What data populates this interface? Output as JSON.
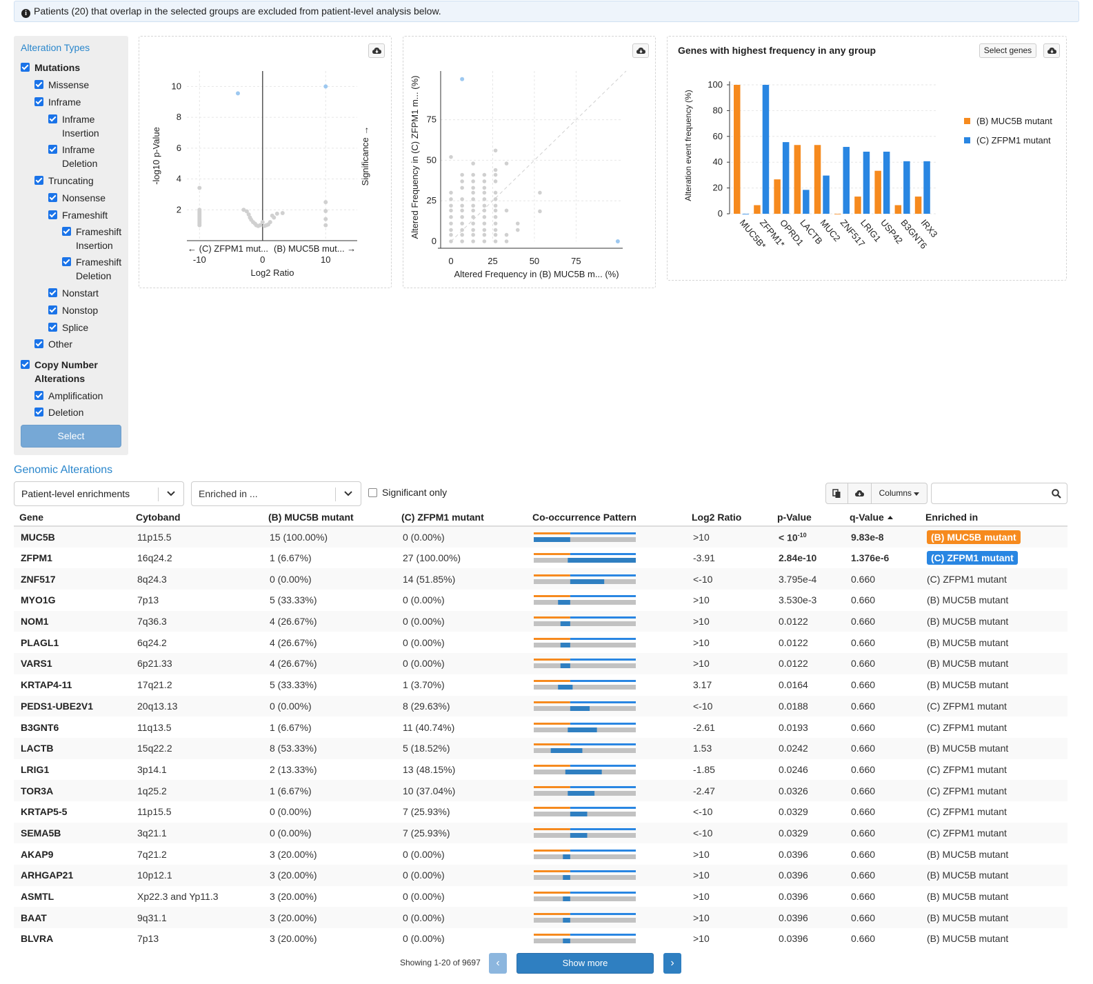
{
  "info_banner": "Patients (20) that overlap in the selected groups are excluded from patient-level analysis below.",
  "colors": {
    "group_b": "#f68a1e",
    "group_c": "#2986e2",
    "link": "#2986cc",
    "check": "#1a73e8",
    "grey": "#c2c2c2"
  },
  "sidebar": {
    "title": "Alteration Types",
    "items": [
      {
        "label": "Mutations",
        "level": 0,
        "bold": true,
        "checked": true
      },
      {
        "label": "Missense",
        "level": 1,
        "checked": true
      },
      {
        "label": "Inframe",
        "level": 1,
        "checked": true
      },
      {
        "label": "Inframe Insertion",
        "level": 2,
        "checked": true
      },
      {
        "label": "Inframe Deletion",
        "level": 2,
        "checked": true
      },
      {
        "label": "Truncating",
        "level": 1,
        "checked": true
      },
      {
        "label": "Nonsense",
        "level": 2,
        "checked": true
      },
      {
        "label": "Frameshift",
        "level": 2,
        "checked": true
      },
      {
        "label": "Frameshift Insertion",
        "level": 3,
        "checked": true
      },
      {
        "label": "Frameshift Deletion",
        "level": 3,
        "checked": true
      },
      {
        "label": "Nonstart",
        "level": 2,
        "checked": true
      },
      {
        "label": "Nonstop",
        "level": 2,
        "checked": true
      },
      {
        "label": "Splice",
        "level": 2,
        "checked": true
      },
      {
        "label": "Other",
        "level": 1,
        "checked": true
      },
      {
        "label": "Copy Number Alterations",
        "level": 0,
        "bold": true,
        "checked": true
      },
      {
        "label": "Amplification",
        "level": 1,
        "checked": true
      },
      {
        "label": "Deletion",
        "level": 1,
        "checked": true
      }
    ],
    "select_label": "Select"
  },
  "chart_data": [
    {
      "type": "scatter",
      "name": "volcano",
      "xlabel": "Log2 Ratio",
      "ylabel": "-log10 p-Value",
      "y2label": "Significance →",
      "x_left_label": "← (C) ZFPM1 mut...",
      "x_right_label": "(B) MUC5B mut... →",
      "xticks": [
        -10,
        0,
        10
      ],
      "yticks": [
        2,
        4,
        6,
        8,
        10
      ],
      "xlim": [
        -12,
        15
      ],
      "ylim": [
        0,
        11
      ],
      "highlight_points": [
        {
          "x": -3.91,
          "y": 9.55
        },
        {
          "x": 10,
          "y": 10
        }
      ],
      "grey_points": [
        {
          "x": -10,
          "y": 3.42
        },
        {
          "x": -10,
          "y": 2.0
        },
        {
          "x": -10,
          "y": 1.9
        },
        {
          "x": -10,
          "y": 1.8
        },
        {
          "x": -10,
          "y": 1.7
        },
        {
          "x": -10,
          "y": 1.6
        },
        {
          "x": -10,
          "y": 1.5
        },
        {
          "x": -10,
          "y": 1.4
        },
        {
          "x": -10,
          "y": 1.3
        },
        {
          "x": -10,
          "y": 1.2
        },
        {
          "x": -10,
          "y": 1.1
        },
        {
          "x": -10,
          "y": 1.0
        },
        {
          "x": -2.5,
          "y": 1.9
        },
        {
          "x": -2.2,
          "y": 1.7
        },
        {
          "x": -2.0,
          "y": 1.5
        },
        {
          "x": -1.8,
          "y": 1.35
        },
        {
          "x": -1.5,
          "y": 1.2
        },
        {
          "x": -1.2,
          "y": 1.1
        },
        {
          "x": -1.0,
          "y": 1.0
        },
        {
          "x": -0.7,
          "y": 0.95
        },
        {
          "x": -0.4,
          "y": 1.0
        },
        {
          "x": 0,
          "y": 1.2
        },
        {
          "x": 0.3,
          "y": 0.95
        },
        {
          "x": 0.6,
          "y": 1.0
        },
        {
          "x": 0.9,
          "y": 1.05
        },
        {
          "x": 1.2,
          "y": 1.2
        },
        {
          "x": 1.53,
          "y": 1.62
        },
        {
          "x": 1.8,
          "y": 1.5
        },
        {
          "x": 2.3,
          "y": 1.75
        },
        {
          "x": 3.17,
          "y": 1.79
        },
        {
          "x": -3.0,
          "y": 2.0
        },
        {
          "x": 10,
          "y": 2.5
        },
        {
          "x": 10,
          "y": 1.92
        },
        {
          "x": 10,
          "y": 1.4
        },
        {
          "x": 10,
          "y": 1.0
        }
      ]
    },
    {
      "type": "scatter",
      "name": "frequency-comparison",
      "xlabel": "Altered Frequency in (B) MUC5B m... (%)",
      "ylabel": "Altered Frequency in (C) ZFPM1 m... (%)",
      "xticks": [
        0,
        25,
        50,
        75
      ],
      "yticks": [
        0,
        25,
        50,
        75
      ],
      "xlim": [
        0,
        105
      ],
      "ylim": [
        0,
        105
      ],
      "highlight_points": [
        {
          "x": 6.67,
          "y": 100
        },
        {
          "x": 100,
          "y": 0
        }
      ],
      "grey_points": [
        {
          "x": 0,
          "y": 0
        },
        {
          "x": 0,
          "y": 4
        },
        {
          "x": 0,
          "y": 7
        },
        {
          "x": 0,
          "y": 11
        },
        {
          "x": 0,
          "y": 15
        },
        {
          "x": 0,
          "y": 19
        },
        {
          "x": 0,
          "y": 22
        },
        {
          "x": 0,
          "y": 26
        },
        {
          "x": 0,
          "y": 30
        },
        {
          "x": 0,
          "y": 52
        },
        {
          "x": 6.67,
          "y": 0
        },
        {
          "x": 6.67,
          "y": 4
        },
        {
          "x": 6.67,
          "y": 7
        },
        {
          "x": 6.67,
          "y": 11
        },
        {
          "x": 6.67,
          "y": 15
        },
        {
          "x": 6.67,
          "y": 19
        },
        {
          "x": 6.67,
          "y": 22
        },
        {
          "x": 6.67,
          "y": 26
        },
        {
          "x": 6.67,
          "y": 33
        },
        {
          "x": 6.67,
          "y": 37
        },
        {
          "x": 6.67,
          "y": 41
        },
        {
          "x": 13.3,
          "y": 0
        },
        {
          "x": 13.3,
          "y": 4
        },
        {
          "x": 13.3,
          "y": 7
        },
        {
          "x": 13.3,
          "y": 11
        },
        {
          "x": 13.3,
          "y": 15
        },
        {
          "x": 13.3,
          "y": 19
        },
        {
          "x": 13.3,
          "y": 22
        },
        {
          "x": 13.3,
          "y": 26
        },
        {
          "x": 13.3,
          "y": 30
        },
        {
          "x": 13.3,
          "y": 33
        },
        {
          "x": 13.3,
          "y": 37
        },
        {
          "x": 13.3,
          "y": 41
        },
        {
          "x": 13.3,
          "y": 48
        },
        {
          "x": 20,
          "y": 0
        },
        {
          "x": 20,
          "y": 4
        },
        {
          "x": 20,
          "y": 7
        },
        {
          "x": 20,
          "y": 11
        },
        {
          "x": 20,
          "y": 15
        },
        {
          "x": 20,
          "y": 19
        },
        {
          "x": 20,
          "y": 22
        },
        {
          "x": 20,
          "y": 26
        },
        {
          "x": 20,
          "y": 30
        },
        {
          "x": 20,
          "y": 33
        },
        {
          "x": 20,
          "y": 37
        },
        {
          "x": 20,
          "y": 41
        },
        {
          "x": 26.7,
          "y": 0
        },
        {
          "x": 26.7,
          "y": 4
        },
        {
          "x": 26.7,
          "y": 7
        },
        {
          "x": 26.7,
          "y": 11
        },
        {
          "x": 26.7,
          "y": 15
        },
        {
          "x": 26.7,
          "y": 19
        },
        {
          "x": 26.7,
          "y": 22
        },
        {
          "x": 26.7,
          "y": 26
        },
        {
          "x": 26.7,
          "y": 30
        },
        {
          "x": 26.7,
          "y": 37
        },
        {
          "x": 26.7,
          "y": 41
        },
        {
          "x": 26.7,
          "y": 44
        },
        {
          "x": 26.7,
          "y": 56
        },
        {
          "x": 33.3,
          "y": 0
        },
        {
          "x": 33.3,
          "y": 4
        },
        {
          "x": 33.3,
          "y": 19
        },
        {
          "x": 33.3,
          "y": 48
        },
        {
          "x": 40,
          "y": 7
        },
        {
          "x": 40,
          "y": 11
        },
        {
          "x": 53.3,
          "y": 18.5
        },
        {
          "x": 53.3,
          "y": 30
        }
      ]
    },
    {
      "type": "bar",
      "name": "gene-frequency",
      "title": "Genes with highest frequency in any group",
      "ylabel": "Alteration event frequency (%)",
      "ylim": [
        0,
        105
      ],
      "yticks": [
        0,
        20,
        40,
        60,
        80,
        100
      ],
      "categories": [
        "MUC5B*",
        "ZFPM1*",
        "OPRD1",
        "LACTB",
        "MUC2",
        "ZNF517",
        "LRIG1",
        "USP42",
        "B3GNT6",
        "IRX3"
      ],
      "series": [
        {
          "name": "(B) MUC5B mutant",
          "color": "#f68a1e",
          "values": [
            100,
            6.67,
            26.67,
            53.33,
            53.33,
            0,
            13.33,
            33.33,
            6.67,
            13.33
          ]
        },
        {
          "name": "(C) ZFPM1 mutant",
          "color": "#2986e2",
          "values": [
            0,
            100,
            55.56,
            18.52,
            29.63,
            51.85,
            48.15,
            48.15,
            40.74,
            40.74
          ]
        }
      ],
      "legend_position": "right"
    }
  ],
  "bar_panel": {
    "select_genes_label": "Select genes"
  },
  "section_title": "Genomic Alterations",
  "controls": {
    "enrichment_type": "Patient-level enrichments",
    "enriched_in_placeholder": "Enriched in ...",
    "significant_only_label": "Significant only",
    "columns_label": "Columns",
    "search_value": ""
  },
  "table": {
    "headers": [
      "Gene",
      "Cytoband",
      "(B) MUC5B mutant",
      "(C) ZFPM1 mutant",
      "Co-occurrence Pattern",
      "Log2 Ratio",
      "p-Value",
      "q-Value",
      "Enriched in"
    ],
    "rows": [
      {
        "gene": "MUC5B",
        "cytoband": "11p15.5",
        "b": "15 (100.00%)",
        "c": "0 (0.00%)",
        "b_frac": 1.0,
        "c_frac": 0.0,
        "log2": ">10",
        "p": "< 10",
        "p_exp": "-10",
        "q": "9.83e-8",
        "enriched": "(B) MUC5B mutant",
        "sig": "b"
      },
      {
        "gene": "ZFPM1",
        "cytoband": "16q24.2",
        "b": "1 (6.67%)",
        "c": "27 (100.00%)",
        "b_frac": 0.0667,
        "c_frac": 1.0,
        "log2": "-3.91",
        "p": "2.84e-10",
        "p_exp": "",
        "q": "1.376e-6",
        "enriched": "(C) ZFPM1 mutant",
        "sig": "c"
      },
      {
        "gene": "ZNF517",
        "cytoband": "8q24.3",
        "b": "0 (0.00%)",
        "c": "14 (51.85%)",
        "b_frac": 0,
        "c_frac": 0.5185,
        "log2": "<-10",
        "p": "3.795e-4",
        "p_exp": "",
        "q": "0.660",
        "enriched": "(C) ZFPM1 mutant",
        "sig": ""
      },
      {
        "gene": "MYO1G",
        "cytoband": "7p13",
        "b": "5 (33.33%)",
        "c": "0 (0.00%)",
        "b_frac": 0.3333,
        "c_frac": 0,
        "log2": ">10",
        "p": "3.530e-3",
        "p_exp": "",
        "q": "0.660",
        "enriched": "(B) MUC5B mutant",
        "sig": ""
      },
      {
        "gene": "NOM1",
        "cytoband": "7q36.3",
        "b": "4 (26.67%)",
        "c": "0 (0.00%)",
        "b_frac": 0.2667,
        "c_frac": 0,
        "log2": ">10",
        "p": "0.0122",
        "p_exp": "",
        "q": "0.660",
        "enriched": "(B) MUC5B mutant",
        "sig": ""
      },
      {
        "gene": "PLAGL1",
        "cytoband": "6q24.2",
        "b": "4 (26.67%)",
        "c": "0 (0.00%)",
        "b_frac": 0.2667,
        "c_frac": 0,
        "log2": ">10",
        "p": "0.0122",
        "p_exp": "",
        "q": "0.660",
        "enriched": "(B) MUC5B mutant",
        "sig": ""
      },
      {
        "gene": "VARS1",
        "cytoband": "6p21.33",
        "b": "4 (26.67%)",
        "c": "0 (0.00%)",
        "b_frac": 0.2667,
        "c_frac": 0,
        "log2": ">10",
        "p": "0.0122",
        "p_exp": "",
        "q": "0.660",
        "enriched": "(B) MUC5B mutant",
        "sig": ""
      },
      {
        "gene": "KRTAP4-11",
        "cytoband": "17q21.2",
        "b": "5 (33.33%)",
        "c": "1 (3.70%)",
        "b_frac": 0.3333,
        "c_frac": 0.037,
        "log2": "3.17",
        "p": "0.0164",
        "p_exp": "",
        "q": "0.660",
        "enriched": "(B) MUC5B mutant",
        "sig": ""
      },
      {
        "gene": "PEDS1-UBE2V1",
        "cytoband": "20q13.13",
        "b": "0 (0.00%)",
        "c": "8 (29.63%)",
        "b_frac": 0,
        "c_frac": 0.2963,
        "log2": "<-10",
        "p": "0.0188",
        "p_exp": "",
        "q": "0.660",
        "enriched": "(C) ZFPM1 mutant",
        "sig": ""
      },
      {
        "gene": "B3GNT6",
        "cytoband": "11q13.5",
        "b": "1 (6.67%)",
        "c": "11 (40.74%)",
        "b_frac": 0.0667,
        "c_frac": 0.4074,
        "log2": "-2.61",
        "p": "0.0193",
        "p_exp": "",
        "q": "0.660",
        "enriched": "(C) ZFPM1 mutant",
        "sig": ""
      },
      {
        "gene": "LACTB",
        "cytoband": "15q22.2",
        "b": "8 (53.33%)",
        "c": "5 (18.52%)",
        "b_frac": 0.5333,
        "c_frac": 0.1852,
        "log2": "1.53",
        "p": "0.0242",
        "p_exp": "",
        "q": "0.660",
        "enriched": "(B) MUC5B mutant",
        "sig": ""
      },
      {
        "gene": "LRIG1",
        "cytoband": "3p14.1",
        "b": "2 (13.33%)",
        "c": "13 (48.15%)",
        "b_frac": 0.1333,
        "c_frac": 0.4815,
        "log2": "-1.85",
        "p": "0.0246",
        "p_exp": "",
        "q": "0.660",
        "enriched": "(C) ZFPM1 mutant",
        "sig": ""
      },
      {
        "gene": "TOR3A",
        "cytoband": "1q25.2",
        "b": "1 (6.67%)",
        "c": "10 (37.04%)",
        "b_frac": 0.0667,
        "c_frac": 0.3704,
        "log2": "-2.47",
        "p": "0.0326",
        "p_exp": "",
        "q": "0.660",
        "enriched": "(C) ZFPM1 mutant",
        "sig": ""
      },
      {
        "gene": "KRTAP5-5",
        "cytoband": "11p15.5",
        "b": "0 (0.00%)",
        "c": "7 (25.93%)",
        "b_frac": 0,
        "c_frac": 0.2593,
        "log2": "<-10",
        "p": "0.0329",
        "p_exp": "",
        "q": "0.660",
        "enriched": "(C) ZFPM1 mutant",
        "sig": ""
      },
      {
        "gene": "SEMA5B",
        "cytoband": "3q21.1",
        "b": "0 (0.00%)",
        "c": "7 (25.93%)",
        "b_frac": 0,
        "c_frac": 0.2593,
        "log2": "<-10",
        "p": "0.0329",
        "p_exp": "",
        "q": "0.660",
        "enriched": "(C) ZFPM1 mutant",
        "sig": ""
      },
      {
        "gene": "AKAP9",
        "cytoband": "7q21.2",
        "b": "3 (20.00%)",
        "c": "0 (0.00%)",
        "b_frac": 0.2,
        "c_frac": 0,
        "log2": ">10",
        "p": "0.0396",
        "p_exp": "",
        "q": "0.660",
        "enriched": "(B) MUC5B mutant",
        "sig": ""
      },
      {
        "gene": "ARHGAP21",
        "cytoband": "10p12.1",
        "b": "3 (20.00%)",
        "c": "0 (0.00%)",
        "b_frac": 0.2,
        "c_frac": 0,
        "log2": ">10",
        "p": "0.0396",
        "p_exp": "",
        "q": "0.660",
        "enriched": "(B) MUC5B mutant",
        "sig": ""
      },
      {
        "gene": "ASMTL",
        "cytoband": "Xp22.3 and Yp11.3",
        "b": "3 (20.00%)",
        "c": "0 (0.00%)",
        "b_frac": 0.2,
        "c_frac": 0,
        "log2": ">10",
        "p": "0.0396",
        "p_exp": "",
        "q": "0.660",
        "enriched": "(B) MUC5B mutant",
        "sig": ""
      },
      {
        "gene": "BAAT",
        "cytoband": "9q31.1",
        "b": "3 (20.00%)",
        "c": "0 (0.00%)",
        "b_frac": 0.2,
        "c_frac": 0,
        "log2": ">10",
        "p": "0.0396",
        "p_exp": "",
        "q": "0.660",
        "enriched": "(B) MUC5B mutant",
        "sig": ""
      },
      {
        "gene": "BLVRA",
        "cytoband": "7p13",
        "b": "3 (20.00%)",
        "c": "0 (0.00%)",
        "b_frac": 0.2,
        "c_frac": 0,
        "log2": ">10",
        "p": "0.0396",
        "p_exp": "",
        "q": "0.660",
        "enriched": "(B) MUC5B mutant",
        "sig": ""
      }
    ]
  },
  "pagination": {
    "showing": "Showing 1-20 of 9697",
    "prev": "‹",
    "show_more": "Show more",
    "next": "›"
  }
}
